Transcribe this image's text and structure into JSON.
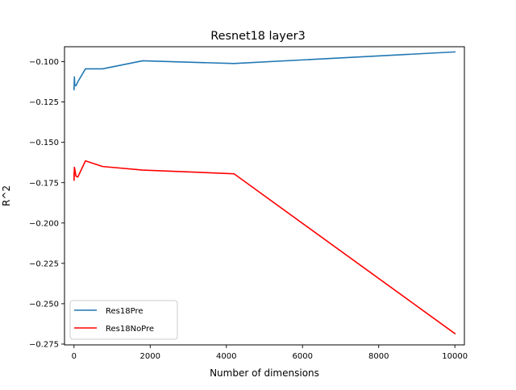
{
  "chart_data": {
    "type": "line",
    "title": "Resnet18 layer3",
    "xlabel": "Number of dimensions",
    "ylabel": "R^2",
    "xlim": [
      -250,
      10250
    ],
    "ylim": [
      -0.2755,
      -0.0908
    ],
    "xticks": [
      0,
      2000,
      4000,
      6000,
      8000,
      10000
    ],
    "xtick_labels": [
      "0",
      "2000",
      "4000",
      "6000",
      "8000",
      "10000"
    ],
    "yticks": [
      -0.1,
      -0.125,
      -0.15,
      -0.175,
      -0.2,
      -0.225,
      -0.25,
      -0.275
    ],
    "ytick_labels": [
      "−0.100",
      "−0.125",
      "−0.150",
      "−0.175",
      "−0.200",
      "−0.225",
      "−0.250",
      "−0.275"
    ],
    "grid": false,
    "legend_position": "lower-left",
    "series": [
      {
        "name": "Res18Pre",
        "color": "#1f77b4",
        "x": [
          1,
          2,
          5,
          10,
          20,
          50,
          100,
          300,
          750,
          1800,
          4200,
          10000
        ],
        "y": [
          -0.116,
          -0.1175,
          -0.1135,
          -0.1095,
          -0.1145,
          -0.115,
          -0.1125,
          -0.1045,
          -0.1045,
          -0.0995,
          -0.1012,
          -0.094
        ]
      },
      {
        "name": "Res18NoPre",
        "color": "#ff0000",
        "x": [
          1,
          2,
          5,
          10,
          20,
          50,
          100,
          300,
          750,
          1800,
          4200,
          10000
        ],
        "y": [
          -0.169,
          -0.1735,
          -0.1705,
          -0.1655,
          -0.1665,
          -0.171,
          -0.1715,
          -0.1615,
          -0.165,
          -0.1672,
          -0.1695,
          -0.2685
        ]
      }
    ]
  }
}
